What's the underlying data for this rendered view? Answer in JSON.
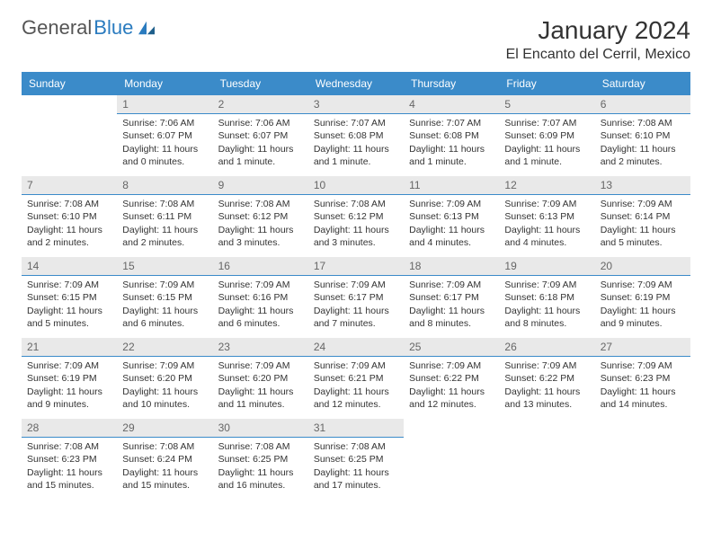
{
  "logo": {
    "text1": "General",
    "text2": "Blue"
  },
  "title": "January 2024",
  "subtitle": "El Encanto del Cerril, Mexico",
  "colors": {
    "header_bg": "#3b8bc9",
    "header_fg": "#ffffff",
    "daynum_bg": "#e9e9e9",
    "daynum_border": "#3b8bc9",
    "text": "#333333",
    "logo_blue": "#2a7bbf"
  },
  "weekdays": [
    "Sunday",
    "Monday",
    "Tuesday",
    "Wednesday",
    "Thursday",
    "Friday",
    "Saturday"
  ],
  "weeks": [
    [
      null,
      {
        "n": "1",
        "sr": "7:06 AM",
        "ss": "6:07 PM",
        "dl": "11 hours and 0 minutes."
      },
      {
        "n": "2",
        "sr": "7:06 AM",
        "ss": "6:07 PM",
        "dl": "11 hours and 1 minute."
      },
      {
        "n": "3",
        "sr": "7:07 AM",
        "ss": "6:08 PM",
        "dl": "11 hours and 1 minute."
      },
      {
        "n": "4",
        "sr": "7:07 AM",
        "ss": "6:08 PM",
        "dl": "11 hours and 1 minute."
      },
      {
        "n": "5",
        "sr": "7:07 AM",
        "ss": "6:09 PM",
        "dl": "11 hours and 1 minute."
      },
      {
        "n": "6",
        "sr": "7:08 AM",
        "ss": "6:10 PM",
        "dl": "11 hours and 2 minutes."
      }
    ],
    [
      {
        "n": "7",
        "sr": "7:08 AM",
        "ss": "6:10 PM",
        "dl": "11 hours and 2 minutes."
      },
      {
        "n": "8",
        "sr": "7:08 AM",
        "ss": "6:11 PM",
        "dl": "11 hours and 2 minutes."
      },
      {
        "n": "9",
        "sr": "7:08 AM",
        "ss": "6:12 PM",
        "dl": "11 hours and 3 minutes."
      },
      {
        "n": "10",
        "sr": "7:08 AM",
        "ss": "6:12 PM",
        "dl": "11 hours and 3 minutes."
      },
      {
        "n": "11",
        "sr": "7:09 AM",
        "ss": "6:13 PM",
        "dl": "11 hours and 4 minutes."
      },
      {
        "n": "12",
        "sr": "7:09 AM",
        "ss": "6:13 PM",
        "dl": "11 hours and 4 minutes."
      },
      {
        "n": "13",
        "sr": "7:09 AM",
        "ss": "6:14 PM",
        "dl": "11 hours and 5 minutes."
      }
    ],
    [
      {
        "n": "14",
        "sr": "7:09 AM",
        "ss": "6:15 PM",
        "dl": "11 hours and 5 minutes."
      },
      {
        "n": "15",
        "sr": "7:09 AM",
        "ss": "6:15 PM",
        "dl": "11 hours and 6 minutes."
      },
      {
        "n": "16",
        "sr": "7:09 AM",
        "ss": "6:16 PM",
        "dl": "11 hours and 6 minutes."
      },
      {
        "n": "17",
        "sr": "7:09 AM",
        "ss": "6:17 PM",
        "dl": "11 hours and 7 minutes."
      },
      {
        "n": "18",
        "sr": "7:09 AM",
        "ss": "6:17 PM",
        "dl": "11 hours and 8 minutes."
      },
      {
        "n": "19",
        "sr": "7:09 AM",
        "ss": "6:18 PM",
        "dl": "11 hours and 8 minutes."
      },
      {
        "n": "20",
        "sr": "7:09 AM",
        "ss": "6:19 PM",
        "dl": "11 hours and 9 minutes."
      }
    ],
    [
      {
        "n": "21",
        "sr": "7:09 AM",
        "ss": "6:19 PM",
        "dl": "11 hours and 9 minutes."
      },
      {
        "n": "22",
        "sr": "7:09 AM",
        "ss": "6:20 PM",
        "dl": "11 hours and 10 minutes."
      },
      {
        "n": "23",
        "sr": "7:09 AM",
        "ss": "6:20 PM",
        "dl": "11 hours and 11 minutes."
      },
      {
        "n": "24",
        "sr": "7:09 AM",
        "ss": "6:21 PM",
        "dl": "11 hours and 12 minutes."
      },
      {
        "n": "25",
        "sr": "7:09 AM",
        "ss": "6:22 PM",
        "dl": "11 hours and 12 minutes."
      },
      {
        "n": "26",
        "sr": "7:09 AM",
        "ss": "6:22 PM",
        "dl": "11 hours and 13 minutes."
      },
      {
        "n": "27",
        "sr": "7:09 AM",
        "ss": "6:23 PM",
        "dl": "11 hours and 14 minutes."
      }
    ],
    [
      {
        "n": "28",
        "sr": "7:08 AM",
        "ss": "6:23 PM",
        "dl": "11 hours and 15 minutes."
      },
      {
        "n": "29",
        "sr": "7:08 AM",
        "ss": "6:24 PM",
        "dl": "11 hours and 15 minutes."
      },
      {
        "n": "30",
        "sr": "7:08 AM",
        "ss": "6:25 PM",
        "dl": "11 hours and 16 minutes."
      },
      {
        "n": "31",
        "sr": "7:08 AM",
        "ss": "6:25 PM",
        "dl": "11 hours and 17 minutes."
      },
      null,
      null,
      null
    ]
  ],
  "labels": {
    "sunrise": "Sunrise:",
    "sunset": "Sunset:",
    "daylight": "Daylight:"
  }
}
